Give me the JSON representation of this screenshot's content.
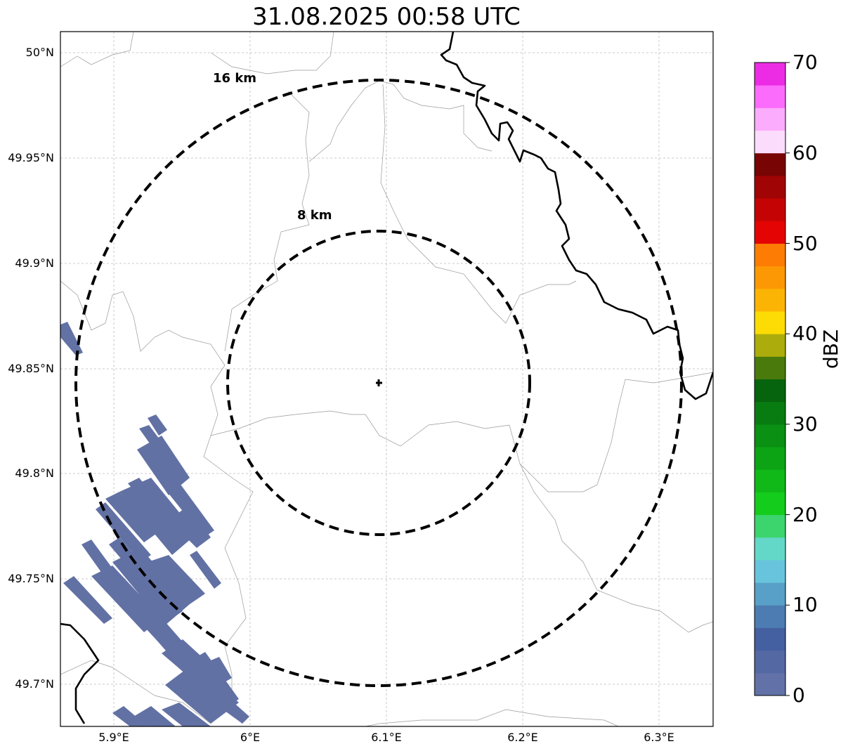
{
  "title": "31.08.2025 00:58 UTC",
  "axes": {
    "lat_ticks": [
      "50°N",
      "49.95°N",
      "49.9°N",
      "49.85°N",
      "49.8°N",
      "49.75°N",
      "49.7°N"
    ],
    "lon_ticks": [
      "5.9°E",
      "6°E",
      "6.1°E",
      "6.2°E",
      "6.3°E"
    ],
    "grid": true
  },
  "range_rings": [
    {
      "label": "16 km",
      "radius_km": 16
    },
    {
      "label": "8 km",
      "radius_km": 8
    }
  ],
  "radar_site_marker": "plus-icon",
  "colorbar": {
    "label": "dBZ",
    "ticks": [
      "0",
      "10",
      "20",
      "30",
      "40",
      "50",
      "60",
      "70"
    ],
    "colors": [
      "#6272a8",
      "#5468a4",
      "#4560a0",
      "#4c7cb1",
      "#58a0c8",
      "#68c4dc",
      "#64d8c8",
      "#3cd46c",
      "#14cc1c",
      "#10b818",
      "#0ca414",
      "#0a9012",
      "#087c10",
      "#06640e",
      "#4a7a0c",
      "#acac0c",
      "#fcdc04",
      "#fcb404",
      "#fc9804",
      "#fc7c04",
      "#e40404",
      "#c40404",
      "#a00404",
      "#780404",
      "#fcdcfc",
      "#fcacfc",
      "#fc6cfc",
      "#ec2ce4"
    ]
  },
  "colors": {
    "echo": "#5a6aa0",
    "border": "#000000",
    "admin_line": "#999999",
    "grid": "#bbbbbb"
  }
}
